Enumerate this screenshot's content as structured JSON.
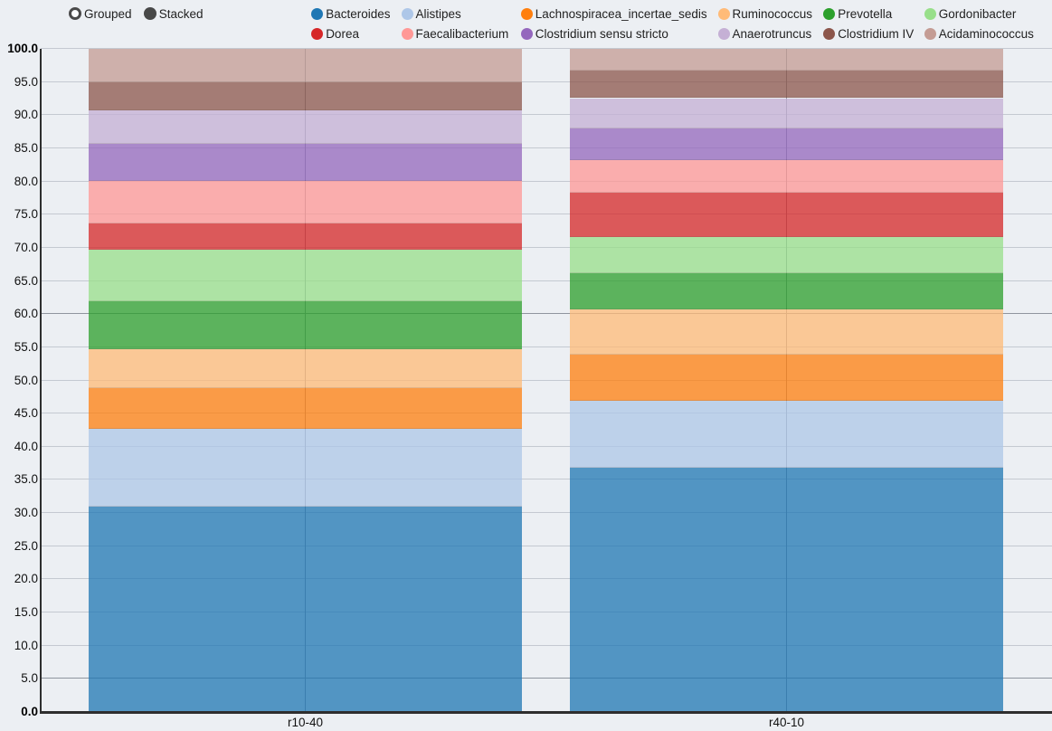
{
  "controls": {
    "grouped_label": "Grouped",
    "stacked_label": "Stacked",
    "selected_mode": "Stacked"
  },
  "chart_data": {
    "type": "bar",
    "stacked": true,
    "orientation": "vertical",
    "categories": [
      "r10-40",
      "r40-10"
    ],
    "series": [
      {
        "name": "Bacteroides",
        "color": "#1f77b4",
        "values": [
          30.9,
          36.8
        ]
      },
      {
        "name": "Alistipes",
        "color": "#aec7e8",
        "values": [
          11.8,
          10.1
        ]
      },
      {
        "name": "Lachnospiracea_incertae_sedis",
        "color": "#ff7f0e",
        "values": [
          6.1,
          6.9
        ]
      },
      {
        "name": "Ruminococcus",
        "color": "#ffbb78",
        "values": [
          5.9,
          6.8
        ]
      },
      {
        "name": "Prevotella",
        "color": "#2ca02c",
        "values": [
          7.2,
          5.5
        ]
      },
      {
        "name": "Gordonibacter",
        "color": "#98df8a",
        "values": [
          7.7,
          5.5
        ]
      },
      {
        "name": "Dorea",
        "color": "#d62728",
        "values": [
          4.0,
          6.6
        ]
      },
      {
        "name": "Faecalibacterium",
        "color": "#ff9896",
        "values": [
          6.4,
          4.9
        ]
      },
      {
        "name": "Clostridium sensu stricto",
        "color": "#9467bd",
        "values": [
          5.6,
          4.8
        ]
      },
      {
        "name": "Anaerotruncus",
        "color": "#c5b0d5",
        "values": [
          5.0,
          4.6
        ]
      },
      {
        "name": "Clostridium IV",
        "color": "#8c564b",
        "values": [
          4.3,
          4.1
        ]
      },
      {
        "name": "Acidaminococcus",
        "color": "#c49c94",
        "values": [
          5.1,
          3.4
        ]
      }
    ],
    "ylim": [
      0,
      100
    ],
    "ytick_step": 5,
    "ytick_decimals": 1,
    "emphasized_gridlines": [
      5,
      60
    ],
    "legend_position": "top",
    "grid": true
  }
}
